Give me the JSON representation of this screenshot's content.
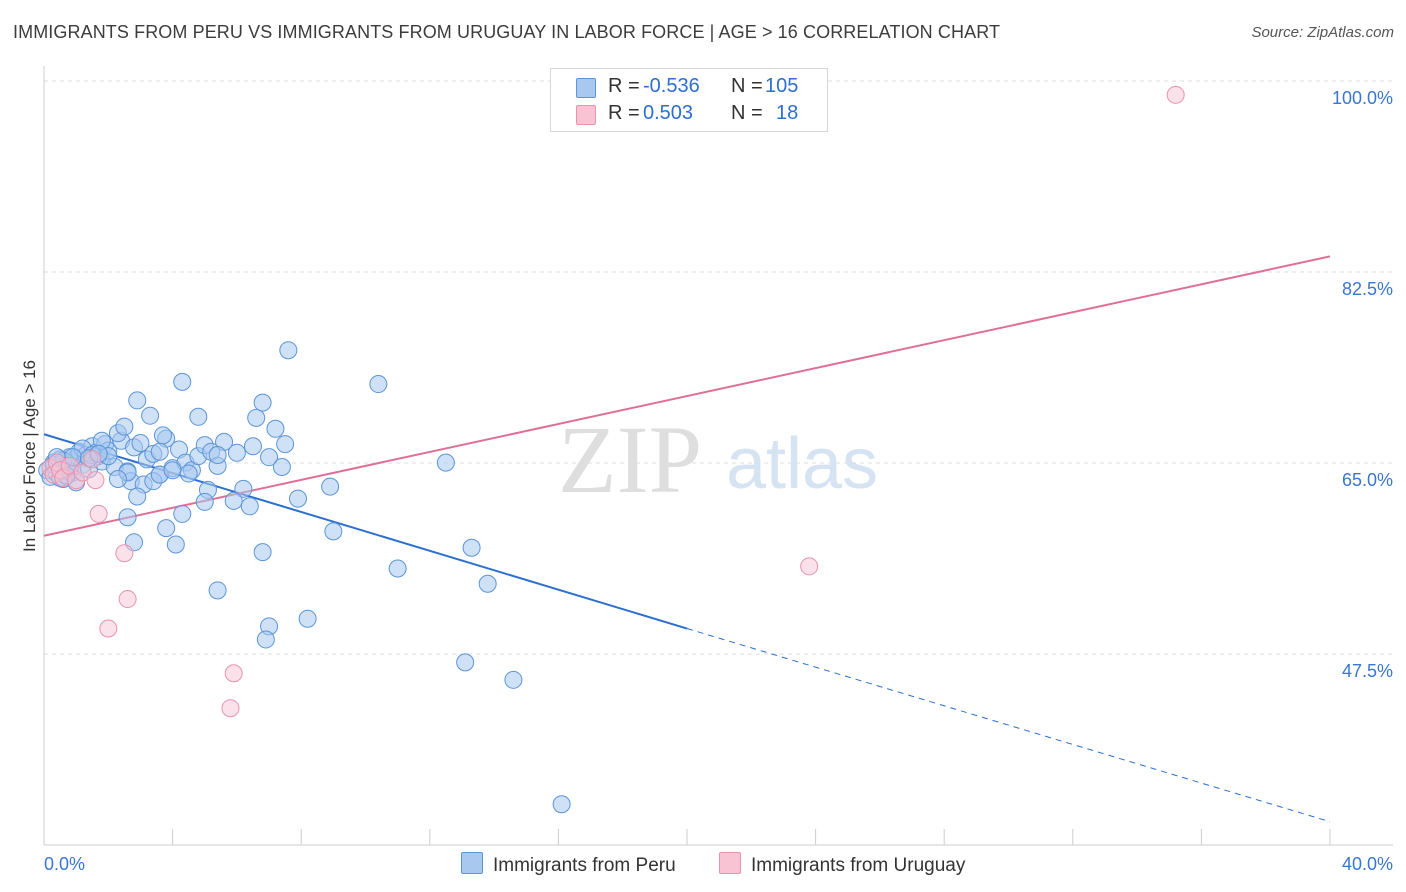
{
  "title": "IMMIGRANTS FROM PERU VS IMMIGRANTS FROM URUGUAY IN LABOR FORCE | AGE > 16 CORRELATION CHART",
  "source": "Source: ZipAtlas.com",
  "watermark": {
    "zip": "ZIP",
    "atlas": "atlas"
  },
  "colors": {
    "peru_fill": "#a8c8f0",
    "peru_stroke": "#5b95d8",
    "peru_line": "#2b6fd1",
    "uruguay_fill": "#f8c3d3",
    "uruguay_stroke": "#e893ae",
    "uruguay_line": "#e06f98",
    "axis_label": "#3a76cf",
    "grid": "#dddddd"
  },
  "stats": [
    {
      "r_label": "R =",
      "r_value": "-0.536",
      "n_label": "N =",
      "n_value": "105"
    },
    {
      "r_label": "R =",
      "r_value": "0.503",
      "n_label": "N =",
      "n_value": "18"
    }
  ],
  "legend": {
    "peru": "Immigrants from Peru",
    "uruguay": "Immigrants from Uruguay"
  },
  "chart_data": {
    "type": "scatter",
    "title": "IMMIGRANTS FROM PERU VS IMMIGRANTS FROM URUGUAY IN LABOR FORCE | AGE > 16 CORRELATION CHART",
    "xlabel": "",
    "ylabel": "In Labor Force | Age > 16",
    "xlim": [
      0,
      40
    ],
    "ylim": [
      32,
      102
    ],
    "x_tick_labels": [
      {
        "value": 0,
        "label": "0.0%"
      },
      {
        "value": 40,
        "label": "40.0%"
      }
    ],
    "y_tick_labels": [
      {
        "value": 47.5,
        "label": "47.5%"
      },
      {
        "value": 65.0,
        "label": "65.0%"
      },
      {
        "value": 82.5,
        "label": "82.5%"
      },
      {
        "value": 100.0,
        "label": "100.0%"
      }
    ],
    "series": [
      {
        "name": "Immigrants from Peru",
        "points": [
          [
            0.1,
            65.8
          ],
          [
            0.2,
            65.2
          ],
          [
            0.3,
            66.5
          ],
          [
            0.4,
            65.5
          ],
          [
            0.5,
            66.8
          ],
          [
            0.6,
            65.0
          ],
          [
            0.7,
            66.2
          ],
          [
            0.8,
            67.0
          ],
          [
            0.9,
            65.6
          ],
          [
            1.0,
            66.9
          ],
          [
            1.1,
            67.5
          ],
          [
            1.2,
            66.3
          ],
          [
            1.3,
            67.2
          ],
          [
            1.4,
            65.9
          ],
          [
            1.5,
            68.0
          ],
          [
            1.6,
            67.4
          ],
          [
            1.7,
            67.1
          ],
          [
            1.8,
            66.6
          ],
          [
            1.9,
            68.2
          ],
          [
            2.0,
            67.6
          ],
          [
            2.2,
            66.1
          ],
          [
            2.4,
            68.5
          ],
          [
            2.6,
            65.7
          ],
          [
            2.8,
            67.9
          ],
          [
            3.0,
            68.3
          ],
          [
            3.2,
            66.8
          ],
          [
            3.4,
            67.3
          ],
          [
            3.6,
            65.4
          ],
          [
            3.8,
            68.7
          ],
          [
            4.0,
            66.0
          ],
          [
            4.2,
            67.7
          ],
          [
            4.4,
            66.5
          ],
          [
            4.6,
            65.8
          ],
          [
            4.8,
            67.1
          ],
          [
            5.0,
            68.1
          ],
          [
            5.2,
            67.5
          ],
          [
            5.4,
            66.2
          ],
          [
            5.6,
            68.4
          ],
          [
            1.2,
            67.8
          ],
          [
            1.8,
            68.5
          ],
          [
            2.3,
            69.2
          ],
          [
            2.5,
            69.8
          ],
          [
            2.9,
            72.2
          ],
          [
            3.3,
            70.8
          ],
          [
            3.7,
            69.0
          ],
          [
            4.3,
            73.9
          ],
          [
            4.8,
            70.7
          ],
          [
            5.4,
            67.2
          ],
          [
            6.0,
            67.4
          ],
          [
            6.2,
            64.1
          ],
          [
            6.6,
            70.6
          ],
          [
            6.8,
            72.0
          ],
          [
            6.5,
            68.0
          ],
          [
            7.0,
            67.0
          ],
          [
            7.2,
            69.6
          ],
          [
            7.5,
            68.2
          ],
          [
            7.6,
            76.8
          ],
          [
            2.7,
            64.8
          ],
          [
            2.6,
            65.6
          ],
          [
            3.1,
            64.5
          ],
          [
            3.4,
            64.8
          ],
          [
            3.6,
            65.4
          ],
          [
            4.0,
            65.8
          ],
          [
            4.5,
            65.5
          ],
          [
            5.1,
            64.0
          ],
          [
            5.9,
            63.0
          ],
          [
            6.4,
            62.5
          ],
          [
            7.4,
            66.1
          ],
          [
            7.9,
            63.2
          ],
          [
            8.9,
            64.3
          ],
          [
            2.3,
            65.0
          ],
          [
            2.6,
            61.5
          ],
          [
            2.9,
            63.4
          ],
          [
            3.8,
            60.5
          ],
          [
            4.1,
            59.0
          ],
          [
            4.3,
            61.8
          ],
          [
            5.0,
            62.9
          ],
          [
            9.0,
            60.2
          ],
          [
            10.4,
            73.7
          ],
          [
            12.5,
            66.5
          ],
          [
            13.3,
            58.7
          ],
          [
            11.0,
            56.8
          ],
          [
            6.8,
            58.3
          ],
          [
            2.8,
            59.2
          ],
          [
            5.4,
            54.8
          ],
          [
            7.0,
            51.5
          ],
          [
            6.9,
            50.3
          ],
          [
            8.2,
            52.2
          ],
          [
            13.8,
            55.4
          ],
          [
            13.1,
            48.2
          ],
          [
            14.6,
            46.6
          ],
          [
            16.1,
            35.2
          ],
          [
            0.3,
            66.3
          ],
          [
            0.5,
            65.1
          ],
          [
            0.8,
            65.7
          ],
          [
            1.0,
            64.7
          ],
          [
            0.6,
            66.7
          ],
          [
            0.9,
            67.0
          ],
          [
            1.5,
            67.2
          ],
          [
            2.0,
            67.1
          ],
          [
            1.4,
            66.9
          ],
          [
            1.7,
            67.3
          ],
          [
            0.4,
            67.0
          ],
          [
            0.7,
            65.3
          ],
          [
            3.6,
            67.5
          ]
        ],
        "trend": {
          "x_start": 0,
          "y_start": 69.1,
          "x_solid_end": 20,
          "y_solid_end": 51.3,
          "x_dash_end": 40,
          "y_dash_end": 33.6
        }
      },
      {
        "name": "Immigrants from Uruguay",
        "points": [
          [
            0.2,
            66.0
          ],
          [
            0.3,
            65.4
          ],
          [
            0.4,
            66.5
          ],
          [
            0.5,
            65.8
          ],
          [
            0.6,
            65.1
          ],
          [
            0.8,
            66.2
          ],
          [
            1.0,
            64.9
          ],
          [
            1.2,
            65.6
          ],
          [
            1.5,
            66.8
          ],
          [
            1.6,
            64.9
          ],
          [
            1.7,
            61.8
          ],
          [
            2.5,
            58.2
          ],
          [
            2.6,
            54.0
          ],
          [
            2.0,
            51.3
          ],
          [
            5.9,
            47.2
          ],
          [
            5.8,
            44.0
          ],
          [
            23.8,
            57.0
          ],
          [
            35.2,
            100.2
          ]
        ],
        "trend": {
          "x_start": 0,
          "y_start": 59.8,
          "x_end": 40,
          "y_end": 85.4
        }
      }
    ]
  }
}
